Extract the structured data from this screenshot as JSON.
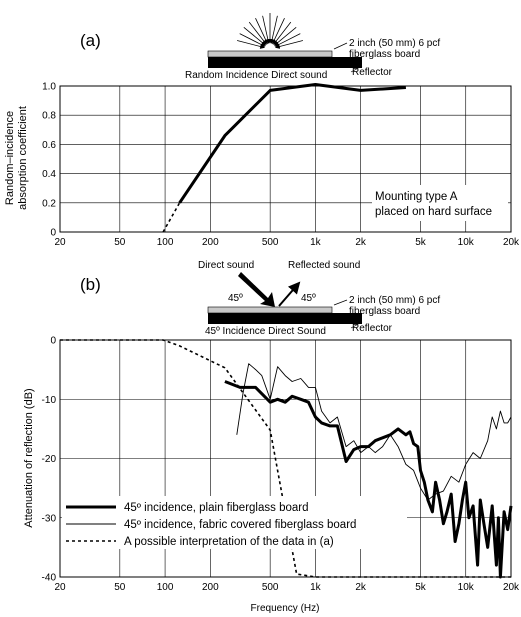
{
  "chart_data": [
    {
      "type": "line",
      "panel_label": "(a)",
      "ylabel": "Random-incidence absorption coefficient",
      "ylabel_lines": [
        "Random–incidence",
        "absorption coefficient"
      ],
      "xlabel": "",
      "x_scale": "log",
      "xlim": [
        20,
        20000
      ],
      "ylim": [
        0,
        1.0
      ],
      "x_ticks": [
        20,
        50,
        100,
        200,
        500,
        1000,
        2000,
        5000,
        10000,
        20000
      ],
      "x_tick_labels": [
        "20",
        "50",
        "100",
        "200",
        "500",
        "1k",
        "2k",
        "5k",
        "10k",
        "20k"
      ],
      "y_ticks": [
        0,
        0.2,
        0.4,
        0.6,
        0.8,
        1.0
      ],
      "y_tick_labels": [
        "0",
        "0.2",
        "0.4",
        "0.6",
        "0.8",
        "1.0"
      ],
      "grid": true,
      "annotation_lines": [
        "Mounting type A",
        "placed on hard surface"
      ],
      "inset": {
        "title": "Random Incidence Direct sound",
        "board_label_lines": [
          "2 inch (50 mm) 6 pcf",
          "fiberglass board"
        ],
        "reflector_label": "Reflector"
      },
      "series": [
        {
          "style": "thick-solid",
          "x": [
            125,
            250,
            500,
            1000,
            2000,
            4000
          ],
          "y": [
            0.2,
            0.66,
            0.97,
            1.01,
            0.97,
            0.99
          ]
        },
        {
          "style": "dashed",
          "x": [
            97,
            125
          ],
          "y": [
            0.0,
            0.2
          ]
        }
      ]
    },
    {
      "type": "line",
      "panel_label": "(b)",
      "ylabel": "Attenuation of reflection (dB)",
      "xlabel": "Frequency (Hz)",
      "x_scale": "log",
      "xlim": [
        20,
        20000
      ],
      "ylim": [
        -40,
        0
      ],
      "x_ticks": [
        20,
        50,
        100,
        200,
        500,
        1000,
        2000,
        5000,
        10000,
        20000
      ],
      "x_tick_labels": [
        "20",
        "50",
        "100",
        "200",
        "500",
        "1k",
        "2k",
        "5k",
        "10k",
        "20k"
      ],
      "y_ticks": [
        0,
        -10,
        -20,
        -30,
        -40
      ],
      "y_tick_labels": [
        "0",
        "-10",
        "-20",
        "-30",
        "-40"
      ],
      "grid": true,
      "legend_position": "bottom-left",
      "inset": {
        "title": "45º Incidence Direct Sound",
        "direct_label": "Direct sound",
        "reflected_label": "Reflected sound",
        "angle_left": "45º",
        "angle_right": "45º",
        "board_label_lines": [
          "2 inch (50 mm) 6 pcf",
          "fiberglass board"
        ],
        "reflector_label": "Reflector"
      },
      "series": [
        {
          "name": "45º incidence, plain fiberglass board",
          "style": "thick-solid",
          "x": [
            250,
            315,
            400,
            500,
            560,
            630,
            700,
            800,
            900,
            1000,
            1100,
            1250,
            1400,
            1600,
            1800,
            2000,
            2250,
            2500,
            2800,
            3150,
            3550,
            4000,
            4250,
            4500,
            4800,
            5000,
            5300,
            5600,
            6000,
            6300,
            6700,
            7100,
            7500,
            8000,
            8500,
            9000,
            9500,
            10000,
            10500,
            11200,
            12000,
            12500,
            13200,
            14000,
            15000,
            16000,
            16500,
            17000,
            18000,
            19000,
            20000
          ],
          "y": [
            -7,
            -8,
            -8,
            -10.5,
            -10,
            -10.5,
            -9.5,
            -10,
            -10.5,
            -13,
            -14,
            -14.5,
            -14.5,
            -20.5,
            -18.5,
            -18,
            -18,
            -17,
            -16.5,
            -16,
            -15,
            -16,
            -15.5,
            -17.5,
            -18,
            -22,
            -24,
            -27,
            -29,
            -24,
            -27,
            -31,
            -29,
            -26,
            -34,
            -31,
            -27,
            -24,
            -30,
            -28,
            -38,
            -27,
            -31,
            -35,
            -28,
            -38,
            -30,
            -40,
            -29,
            -32,
            -28
          ]
        },
        {
          "name": "45º incidence, fabric covered fiberglass board",
          "style": "thin-solid",
          "x": [
            300,
            330,
            360,
            400,
            440,
            500,
            560,
            630,
            700,
            800,
            900,
            1000,
            1100,
            1250,
            1400,
            1600,
            1800,
            2000,
            2250,
            2500,
            2800,
            3150,
            3550,
            4000,
            4500,
            5000,
            5600,
            6300,
            7100,
            8000,
            9000,
            10000,
            11200,
            12500,
            14000,
            15000,
            16000,
            17000,
            18000,
            19000,
            20000
          ],
          "y": [
            -16,
            -9,
            -4,
            -5,
            -6,
            -10,
            -4.5,
            -6,
            -7,
            -6.5,
            -8,
            -8,
            -12,
            -14,
            -13,
            -18,
            -17,
            -19,
            -18,
            -19,
            -18,
            -16,
            -18,
            -21,
            -22,
            -25,
            -27,
            -26,
            -25.5,
            -23,
            -24,
            -21,
            -19,
            -20,
            -17,
            -13,
            -15,
            -12,
            -14,
            -14,
            -13
          ]
        },
        {
          "name": "A possible interpretation of the data in (a)",
          "style": "dashed",
          "x": [
            20,
            97,
            125,
            250,
            500,
            750,
            1000,
            2000,
            4000,
            20000
          ],
          "y": [
            0,
            0,
            -1,
            -4.7,
            -15.2,
            -39.5,
            -40,
            -40,
            -40,
            -40
          ]
        }
      ]
    }
  ]
}
